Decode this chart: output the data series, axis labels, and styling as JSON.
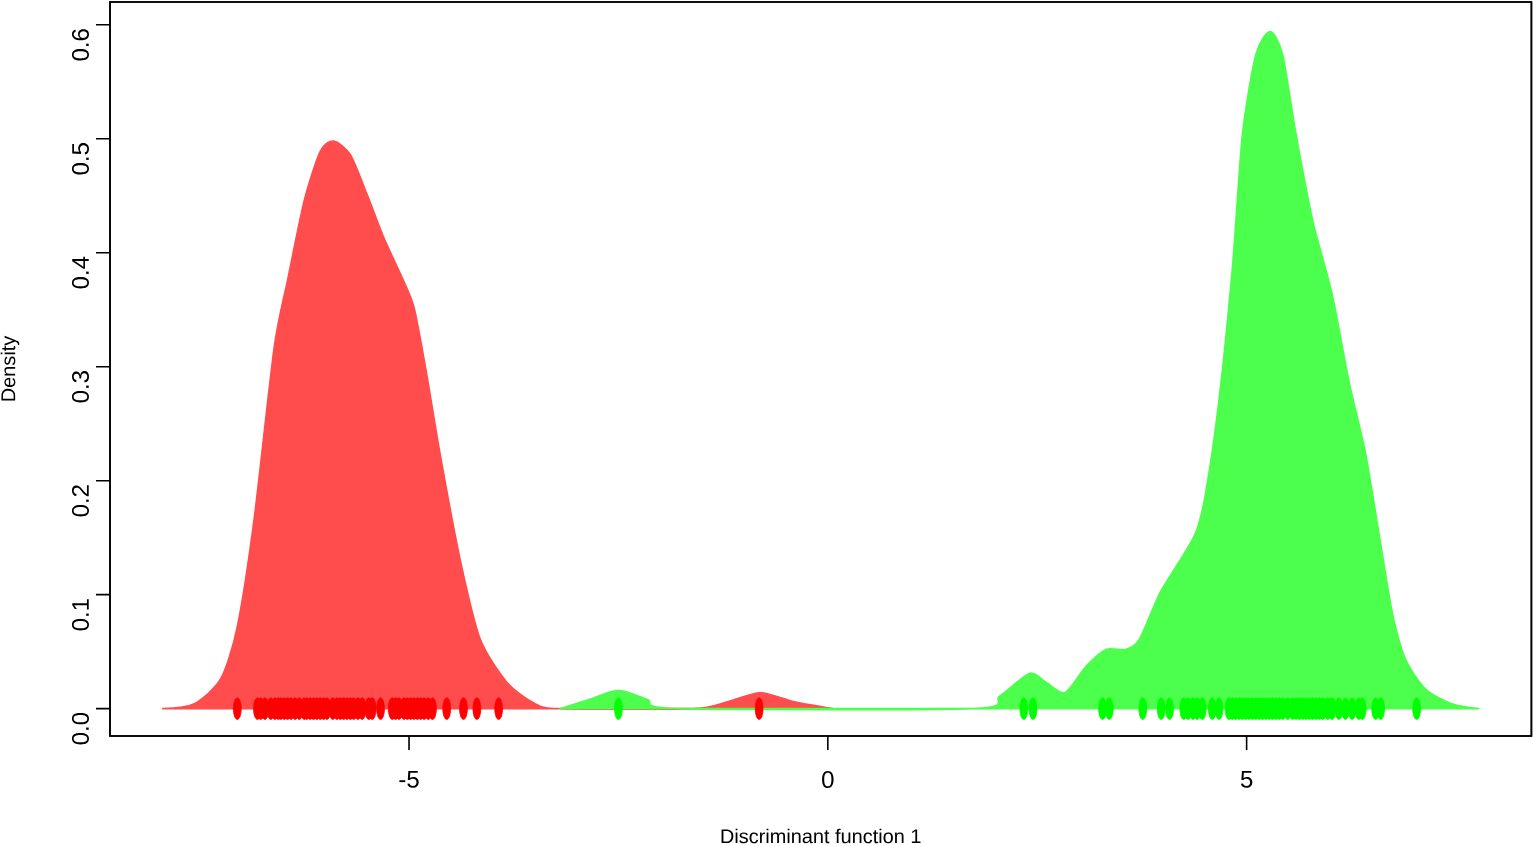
{
  "chart_data": {
    "type": "area",
    "xlabel": "Discriminant function 1",
    "ylabel": "Density",
    "xlim": [
      -8.57,
      8.4
    ],
    "ylim": [
      -0.024,
      0.62
    ],
    "xticks": [
      -5,
      0,
      5
    ],
    "yticks": [
      {
        "value": 0,
        "label": "0.0"
      },
      0.1,
      0.2,
      0.3,
      0.4,
      0.5,
      0.6
    ],
    "series": [
      {
        "color": "#ff4d4d",
        "x": [
          -7.94,
          -7.57,
          -7.25,
          -7.05,
          -6.85,
          -6.61,
          -6.45,
          -6.25,
          -6.06,
          -5.9,
          -5.7,
          -5.5,
          -5.3,
          -5.1,
          -4.94,
          -4.79,
          -4.63,
          -4.39,
          -4.15,
          -3.83,
          -3.51,
          -3.2,
          -1.6,
          -1.2,
          -0.81,
          -0.4,
          0.06
        ],
        "values": [
          0,
          0.004,
          0.026,
          0.072,
          0.166,
          0.317,
          0.376,
          0.446,
          0.489,
          0.498,
          0.486,
          0.451,
          0.413,
          0.381,
          0.352,
          0.294,
          0.224,
          0.131,
          0.061,
          0.023,
          0.005,
          0,
          0,
          0.006,
          0.014,
          0.006,
          0
        ]
      },
      {
        "color": "#4dff4d",
        "x": [
          -3.2,
          -2.85,
          -2.5,
          -2.15,
          -1.8,
          1.73,
          2.05,
          2.41,
          2.61,
          2.83,
          3.08,
          3.32,
          3.56,
          3.72,
          3.96,
          4.16,
          4.39,
          4.51,
          4.67,
          4.83,
          4.95,
          5.11,
          5.28,
          5.43,
          5.59,
          5.79,
          6.02,
          6.22,
          6.42,
          6.58,
          6.74,
          6.9,
          7.14,
          7.46,
          7.77
        ],
        "values": [
          0,
          0.008,
          0.016,
          0.008,
          0,
          0,
          0.011,
          0.031,
          0.023,
          0.014,
          0.037,
          0.052,
          0.052,
          0.061,
          0.101,
          0.125,
          0.154,
          0.189,
          0.271,
          0.387,
          0.504,
          0.574,
          0.594,
          0.574,
          0.504,
          0.428,
          0.364,
          0.288,
          0.224,
          0.154,
          0.084,
          0.043,
          0.017,
          0.004,
          0
        ]
      },
      {
        "type": "scatter",
        "color": "#ff0000",
        "x": [
          -7.05,
          -6.81,
          -6.77,
          -6.72,
          -6.65,
          -6.6,
          -6.56,
          -6.53,
          -6.49,
          -6.45,
          -6.41,
          -6.36,
          -6.31,
          -6.25,
          -6.22,
          -6.18,
          -6.14,
          -6.1,
          -6.06,
          -6.02,
          -5.98,
          -5.91,
          -5.86,
          -5.82,
          -5.78,
          -5.74,
          -5.7,
          -5.66,
          -5.61,
          -5.56,
          -5.48,
          -5.44,
          -5.34,
          -5.2,
          -5.16,
          -5.12,
          -5.06,
          -5.02,
          -4.98,
          -4.94,
          -4.9,
          -4.86,
          -4.82,
          -4.77,
          -4.72,
          -4.55,
          -4.35,
          -4.19,
          -3.93,
          -0.82
        ],
        "values": [
          0,
          0,
          0,
          0,
          0,
          0,
          0,
          0,
          0,
          0,
          0,
          0,
          0,
          0,
          0,
          0,
          0,
          0,
          0,
          0,
          0,
          0,
          0,
          0,
          0,
          0,
          0,
          0,
          0,
          0,
          0,
          0,
          0,
          0,
          0,
          0,
          0,
          0,
          0,
          0,
          0,
          0,
          0,
          0,
          0,
          0,
          0,
          0,
          0,
          0
        ]
      },
      {
        "type": "scatter",
        "color": "#00ff00",
        "x": [
          -2.5,
          2.34,
          2.45,
          3.28,
          3.36,
          3.76,
          3.98,
          4.08,
          4.25,
          4.3,
          4.36,
          4.41,
          4.47,
          4.59,
          4.67,
          4.79,
          4.83,
          4.87,
          4.91,
          4.95,
          4.99,
          5.03,
          5.07,
          5.11,
          5.15,
          5.19,
          5.23,
          5.27,
          5.31,
          5.35,
          5.39,
          5.43,
          5.49,
          5.55,
          5.59,
          5.63,
          5.67,
          5.71,
          5.75,
          5.79,
          5.83,
          5.87,
          5.91,
          5.97,
          6.02,
          6.1,
          6.18,
          6.26,
          6.34,
          6.38,
          6.54,
          6.6,
          7.03
        ],
        "values": [
          0,
          0,
          0,
          0,
          0,
          0,
          0,
          0,
          0,
          0,
          0,
          0,
          0,
          0,
          0,
          0,
          0,
          0,
          0,
          0,
          0,
          0,
          0,
          0,
          0,
          0,
          0,
          0,
          0,
          0,
          0,
          0,
          0,
          0,
          0,
          0,
          0,
          0,
          0,
          0,
          0,
          0,
          0,
          0,
          0,
          0,
          0,
          0,
          0,
          0,
          0,
          0,
          0
        ]
      }
    ]
  }
}
